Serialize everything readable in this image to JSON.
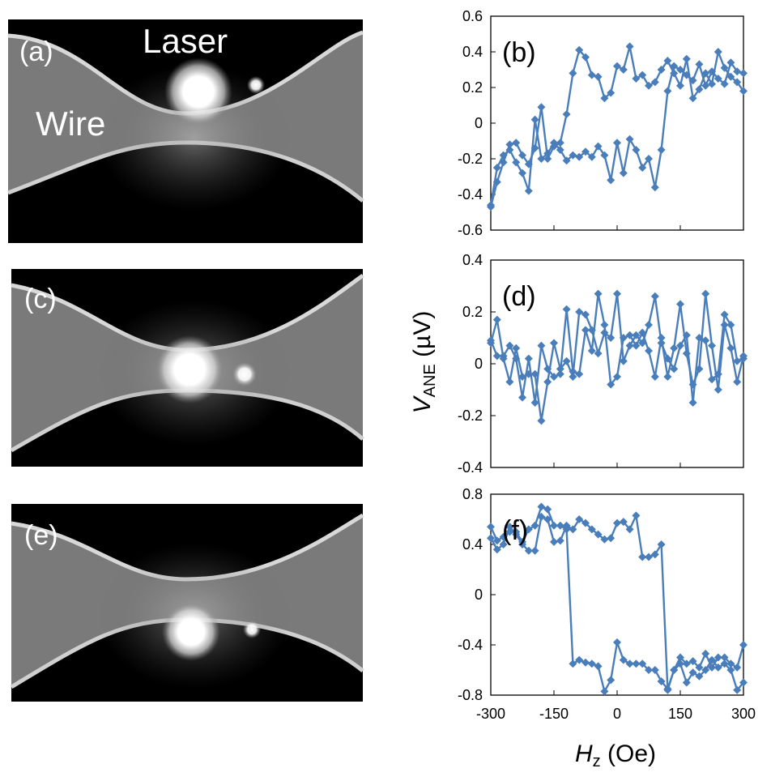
{
  "images": [
    {
      "label": "(a)",
      "annotations": [
        "Laser",
        "Wire"
      ]
    },
    {
      "label": "(c)",
      "annotations": []
    },
    {
      "label": "(e)",
      "annotations": []
    }
  ],
  "axis_titles": {
    "y_main": "V",
    "y_sub": "ANE",
    "y_unit": " (µV)",
    "x_main": "H",
    "x_sub": "z",
    "x_unit": " (Oe)"
  },
  "colors": {
    "series": "#4A7EBB",
    "axis": "#000000",
    "image_bg": "#0d0d0d",
    "image_wire": "#8c8c8c"
  },
  "chart_data": [
    {
      "type": "line",
      "panel_label": "(b)",
      "xlim": [
        -300,
        300
      ],
      "ylim": [
        -0.6,
        0.6
      ],
      "yticks": [
        -0.6,
        -0.4,
        -0.2,
        0,
        0.2,
        0.4,
        0.6
      ],
      "ytick_labels": [
        "-0.6",
        "-0.4",
        "-0.2",
        "0",
        "0.2",
        "0.4",
        "0.6"
      ],
      "xticks": [
        -300,
        -150,
        0,
        150,
        300
      ],
      "xtick_labels": [],
      "marker": "diamond",
      "grid": false,
      "series": [
        {
          "x": [
            -300,
            -285,
            -270,
            -255,
            -240,
            -225,
            -210,
            -195,
            -180,
            -165,
            -150,
            -135,
            -120,
            -105,
            -90,
            -75,
            -60,
            -45,
            -30,
            -15,
            0,
            15,
            30,
            45,
            60,
            75,
            90,
            105,
            120,
            135,
            150,
            165,
            180,
            195,
            210,
            225,
            240,
            255,
            270,
            285,
            300
          ],
          "y": [
            -0.47,
            -0.33,
            -0.22,
            -0.12,
            -0.11,
            -0.18,
            -0.23,
            -0.14,
            0.09,
            -0.2,
            -0.13,
            -0.11,
            0.05,
            0.28,
            0.41,
            0.37,
            0.27,
            0.26,
            0.14,
            0.17,
            0.32,
            0.3,
            0.43,
            0.25,
            0.27,
            0.21,
            0.23,
            0.3,
            0.35,
            0.28,
            0.21,
            0.36,
            0.14,
            0.19,
            0.28,
            0.22,
            0.4,
            0.31,
            0.26,
            0.23,
            0.18
          ]
        },
        {
          "x": [
            300,
            285,
            270,
            255,
            240,
            225,
            210,
            195,
            180,
            165,
            150,
            135,
            120,
            105,
            90,
            75,
            60,
            45,
            30,
            15,
            0,
            -15,
            -30,
            -45,
            -60,
            -75,
            -90,
            -105,
            -120,
            -135,
            -150,
            -165,
            -180,
            -195,
            -210,
            -225,
            -240,
            -255,
            -270,
            -285,
            -300
          ],
          "y": [
            0.28,
            0.29,
            0.34,
            0.22,
            0.25,
            0.29,
            0.21,
            0.33,
            0.24,
            0.27,
            0.3,
            0.32,
            0.18,
            -0.15,
            -0.36,
            -0.2,
            -0.25,
            -0.15,
            -0.09,
            -0.28,
            -0.11,
            -0.32,
            -0.18,
            -0.13,
            -0.19,
            -0.16,
            -0.19,
            -0.18,
            -0.21,
            -0.15,
            -0.11,
            -0.17,
            -0.2,
            0.02,
            -0.38,
            -0.28,
            -0.22,
            -0.15,
            -0.18,
            -0.25,
            -0.46
          ]
        }
      ]
    },
    {
      "type": "line",
      "panel_label": "(d)",
      "xlim": [
        -300,
        300
      ],
      "ylim": [
        -0.4,
        0.4
      ],
      "yticks": [
        -0.4,
        -0.2,
        0,
        0.2,
        0.4
      ],
      "ytick_labels": [
        "-0.4",
        "-0.2",
        "0",
        "0.2",
        "0.4"
      ],
      "xticks": [
        -300,
        -150,
        0,
        150,
        300
      ],
      "xtick_labels": [],
      "marker": "diamond",
      "grid": false,
      "series": [
        {
          "x": [
            -300,
            -285,
            -270,
            -255,
            -240,
            -225,
            -210,
            -195,
            -180,
            -165,
            -150,
            -135,
            -120,
            -105,
            -90,
            -75,
            -60,
            -45,
            -30,
            -15,
            0,
            15,
            30,
            45,
            60,
            75,
            90,
            105,
            120,
            135,
            150,
            165,
            180,
            195,
            210,
            225,
            240,
            255,
            270,
            285,
            300
          ],
          "y": [
            0.09,
            0.03,
            0.03,
            0.07,
            0.02,
            -0.13,
            0.02,
            -0.15,
            0.07,
            -0.02,
            -0.05,
            -0.04,
            0.21,
            -0.03,
            -0.04,
            0.13,
            0.05,
            0.27,
            0.15,
            -0.08,
            -0.05,
            0.1,
            0.11,
            0.07,
            0.12,
            0.05,
            -0.05,
            0.1,
            -0.05,
            0.06,
            0.23,
            0.04,
            -0.08,
            -0.02,
            0.27,
            0.07,
            -0.1,
            0.15,
            0.06,
            -0.07,
            0.03
          ]
        },
        {
          "x": [
            300,
            285,
            270,
            255,
            240,
            225,
            210,
            195,
            180,
            165,
            150,
            135,
            120,
            105,
            90,
            75,
            60,
            45,
            30,
            15,
            0,
            -15,
            -30,
            -45,
            -60,
            -75,
            -90,
            -105,
            -120,
            -135,
            -150,
            -165,
            -180,
            -195,
            -210,
            -225,
            -240,
            -255,
            -270,
            -285,
            -300
          ],
          "y": [
            0.02,
            0.01,
            0.15,
            0.19,
            -0.04,
            -0.06,
            0.09,
            0.1,
            -0.15,
            0.11,
            0.07,
            -0.02,
            0.02,
            0.08,
            0.26,
            0.15,
            0.08,
            0.11,
            0.07,
            0.01,
            0.27,
            0.1,
            0.12,
            0.04,
            0.13,
            0.19,
            0.2,
            -0.05,
            0.01,
            -0.02,
            0.08,
            -0.07,
            -0.22,
            -0.04,
            -0.04,
            -0.05,
            0.06,
            -0.07,
            0.02,
            0.17,
            0.08
          ]
        }
      ]
    },
    {
      "type": "line",
      "panel_label": "(f)",
      "xlim": [
        -300,
        300
      ],
      "ylim": [
        -0.8,
        0.8
      ],
      "yticks": [
        -0.8,
        -0.4,
        0,
        0.4,
        0.8
      ],
      "ytick_labels": [
        "-0.8",
        "-0.4",
        "0",
        "0.4",
        "0.8"
      ],
      "xticks": [
        -300,
        -150,
        0,
        150,
        300
      ],
      "xtick_labels": [
        "-300",
        "-150",
        "0",
        "150",
        "300"
      ],
      "marker": "diamond",
      "grid": false,
      "series": [
        {
          "x": [
            -300,
            -285,
            -270,
            -255,
            -240,
            -225,
            -210,
            -195,
            -180,
            -165,
            -150,
            -135,
            -120,
            -105,
            -90,
            -75,
            -60,
            -45,
            -30,
            -15,
            0,
            15,
            30,
            45,
            60,
            75,
            90,
            105,
            120,
            135,
            150,
            165,
            180,
            195,
            210,
            225,
            240,
            255,
            270,
            285,
            300
          ],
          "y": [
            0.54,
            0.43,
            0.46,
            0.5,
            0.5,
            0.42,
            0.52,
            0.55,
            0.7,
            0.68,
            0.55,
            0.55,
            0.52,
            -0.55,
            -0.52,
            -0.54,
            -0.55,
            -0.57,
            -0.77,
            -0.68,
            -0.38,
            -0.52,
            -0.55,
            -0.55,
            -0.55,
            -0.6,
            -0.6,
            -0.69,
            -0.75,
            -0.6,
            -0.5,
            -0.55,
            -0.53,
            -0.58,
            -0.47,
            -0.58,
            -0.5,
            -0.5,
            -0.55,
            -0.58,
            -0.4
          ]
        },
        {
          "x": [
            300,
            285,
            270,
            255,
            240,
            225,
            210,
            195,
            180,
            165,
            150,
            135,
            120,
            105,
            90,
            75,
            60,
            45,
            30,
            15,
            0,
            -15,
            -30,
            -45,
            -60,
            -75,
            -90,
            -105,
            -120,
            -135,
            -150,
            -165,
            -180,
            -195,
            -210,
            -225,
            -240,
            -255,
            -270,
            -285,
            -300
          ],
          "y": [
            -0.7,
            -0.76,
            -0.6,
            -0.55,
            -0.58,
            -0.52,
            -0.6,
            -0.65,
            -0.62,
            -0.7,
            -0.55,
            -0.6,
            -0.76,
            0.4,
            0.32,
            0.3,
            0.3,
            0.63,
            0.52,
            0.58,
            0.57,
            0.45,
            0.44,
            0.48,
            0.52,
            0.57,
            0.6,
            0.52,
            0.55,
            0.43,
            0.42,
            0.6,
            0.62,
            0.35,
            0.35,
            0.4,
            0.48,
            0.54,
            0.4,
            0.36,
            0.45
          ]
        }
      ]
    }
  ]
}
